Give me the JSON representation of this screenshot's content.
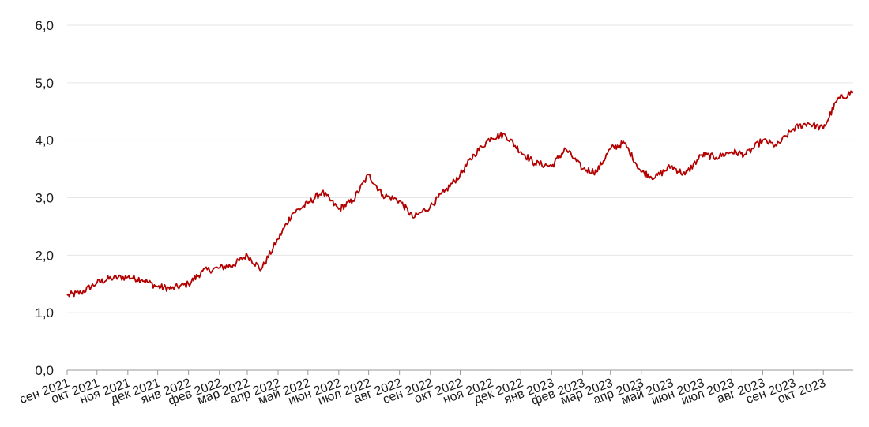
{
  "chart_data": {
    "type": "line",
    "title": "",
    "xlabel": "",
    "ylabel": "",
    "ylim": [
      0,
      6
    ],
    "y_ticks": [
      "0,0",
      "1,0",
      "2,0",
      "3,0",
      "4,0",
      "5,0",
      "6,0"
    ],
    "y_tick_values": [
      0,
      1,
      2,
      3,
      4,
      5,
      6
    ],
    "x_tick_labels": [
      "сен 2021",
      "окт 2021",
      "ноя 2021",
      "дек 2021",
      "янв 2022",
      "фев 2022",
      "мар 2022",
      "апр 2022",
      "май 2022",
      "июн 2022",
      "июл 2022",
      "авг 2022",
      "сен 2022",
      "окт 2022",
      "ноя 2022",
      "дек 2022",
      "янв 2023",
      "фев 2023",
      "мар 2023",
      "апр 2023",
      "май 2023",
      "июн 2023",
      "июл 2023",
      "авг 2023",
      "сен 2023",
      "окт 2023"
    ],
    "x_range": [
      "2021-09-01",
      "2023-10-31"
    ],
    "grid": true,
    "legend": "none",
    "series": [
      {
        "color": "#b30000",
        "dates": [
          "2021-09-01",
          "2021-09-15",
          "2021-10-01",
          "2021-10-15",
          "2021-11-01",
          "2021-11-15",
          "2021-12-01",
          "2021-12-15",
          "2022-01-01",
          "2022-01-15",
          "2022-02-01",
          "2022-02-15",
          "2022-03-01",
          "2022-03-15",
          "2022-04-01",
          "2022-04-15",
          "2022-05-01",
          "2022-05-15",
          "2022-06-01",
          "2022-06-15",
          "2022-07-01",
          "2022-07-15",
          "2022-08-01",
          "2022-08-15",
          "2022-09-01",
          "2022-09-15",
          "2022-10-01",
          "2022-10-15",
          "2022-11-01",
          "2022-11-15",
          "2022-12-01",
          "2022-12-15",
          "2023-01-01",
          "2023-01-15",
          "2023-02-01",
          "2023-02-15",
          "2023-03-01",
          "2023-03-15",
          "2023-04-01",
          "2023-04-15",
          "2023-05-01",
          "2023-05-15",
          "2023-06-01",
          "2023-06-15",
          "2023-07-01",
          "2023-07-15",
          "2023-08-01",
          "2023-08-15",
          "2023-09-01",
          "2023-09-15",
          "2023-10-01",
          "2023-10-15",
          "2023-10-31"
        ],
        "values": [
          1.3,
          1.35,
          1.52,
          1.6,
          1.62,
          1.58,
          1.45,
          1.42,
          1.5,
          1.72,
          1.78,
          1.83,
          2.0,
          1.75,
          2.28,
          2.72,
          2.9,
          3.1,
          2.8,
          2.95,
          3.4,
          3.05,
          2.95,
          2.65,
          2.85,
          3.1,
          3.4,
          3.75,
          4.05,
          4.1,
          3.8,
          3.6,
          3.55,
          3.85,
          3.5,
          3.45,
          3.85,
          3.95,
          3.45,
          3.35,
          3.55,
          3.4,
          3.75,
          3.7,
          3.8,
          3.75,
          4.0,
          3.9,
          4.2,
          4.3,
          4.2,
          4.7,
          4.85
        ]
      }
    ]
  }
}
